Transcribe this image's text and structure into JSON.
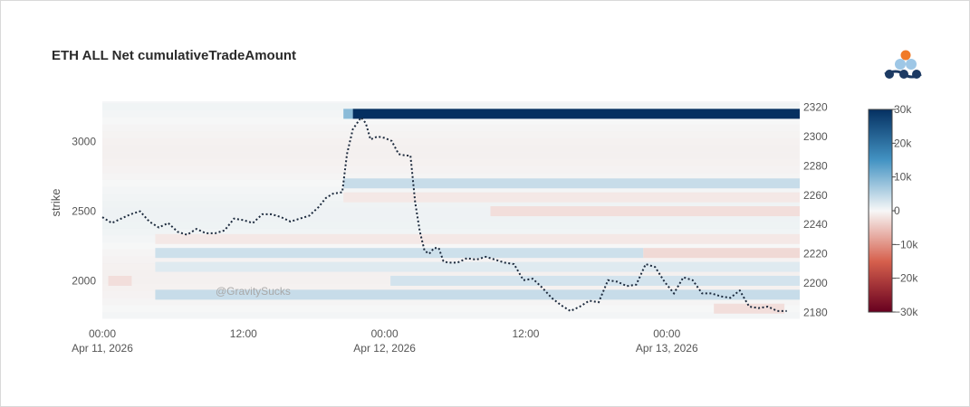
{
  "chart": {
    "title": "ETH ALL Net cumulativeTradeAmount",
    "watermark": "@GravitySucks",
    "logo_icon": "gravity-logo-icon"
  },
  "chart_data": {
    "type": "heatmap",
    "title": "ETH ALL Net cumulativeTradeAmount",
    "x_ticks": [
      {
        "t": 0,
        "time": "00:00",
        "date": "Apr 11, 2026"
      },
      {
        "t": 12,
        "time": "12:00",
        "date": ""
      },
      {
        "t": 24,
        "time": "00:00",
        "date": "Apr 12, 2026"
      },
      {
        "t": 36,
        "time": "12:00",
        "date": ""
      },
      {
        "t": 48,
        "time": "00:00",
        "date": "Apr 13, 2026"
      }
    ],
    "x_range": [
      0,
      59.3
    ],
    "y_left": {
      "label": "strike",
      "ticks": [
        2000,
        2500,
        3000
      ],
      "range": [
        1730,
        3290
      ]
    },
    "y_right": {
      "ticks": [
        2180,
        2200,
        2220,
        2240,
        2260,
        2280,
        2300,
        2320
      ],
      "range": [
        2176,
        2324
      ]
    },
    "colorbar": {
      "ticks": [
        30000,
        20000,
        10000,
        0,
        -10000,
        -20000,
        -30000
      ],
      "tick_labels": [
        "30k",
        "20k",
        "10k",
        "0",
        "−10k",
        "−20k",
        "−30k"
      ],
      "range": [
        -30000,
        30000
      ]
    },
    "bands": [
      {
        "strike": 3200,
        "start": 21.3,
        "end": 59.3,
        "value": 30000
      },
      {
        "strike": 3200,
        "start": 20.5,
        "end": 21.3,
        "value": 9000
      },
      {
        "strike": 2700,
        "start": 20.5,
        "end": 59.3,
        "value": 4000
      },
      {
        "strike": 2200,
        "start": 4.5,
        "end": 46,
        "value": 3500
      },
      {
        "strike": 2200,
        "start": 46,
        "end": 59.3,
        "value": -3000
      },
      {
        "strike": 2000,
        "start": 24.5,
        "end": 59.3,
        "value": 3000
      },
      {
        "strike": 1900,
        "start": 4.5,
        "end": 59.3,
        "value": 4000
      },
      {
        "strike": 2500,
        "start": 33,
        "end": 59.3,
        "value": -2500
      },
      {
        "strike": 2600,
        "start": 20.5,
        "end": 59.3,
        "value": -1500
      },
      {
        "strike": 2300,
        "start": 4.5,
        "end": 59.3,
        "value": -1500
      },
      {
        "strike": 2100,
        "start": 4.5,
        "end": 59.3,
        "value": 2000
      },
      {
        "strike": 1800,
        "start": 52,
        "end": 58,
        "value": -2500
      },
      {
        "strike": 2000,
        "start": 0.5,
        "end": 2.5,
        "value": -2500
      }
    ],
    "series": [
      {
        "axis": "right",
        "style": "dotted",
        "points": [
          [
            0,
            2245
          ],
          [
            0.8,
            2241
          ],
          [
            1.6,
            2244
          ],
          [
            2.4,
            2247
          ],
          [
            3.2,
            2249
          ],
          [
            4.0,
            2242
          ],
          [
            4.8,
            2238
          ],
          [
            5.6,
            2241
          ],
          [
            6.4,
            2235
          ],
          [
            7.2,
            2233
          ],
          [
            8.0,
            2237
          ],
          [
            8.8,
            2234
          ],
          [
            9.6,
            2234
          ],
          [
            10.4,
            2236
          ],
          [
            11.2,
            2244
          ],
          [
            12.0,
            2243
          ],
          [
            12.8,
            2241
          ],
          [
            13.6,
            2247
          ],
          [
            14.4,
            2247
          ],
          [
            15.2,
            2245
          ],
          [
            16.0,
            2242
          ],
          [
            16.8,
            2244
          ],
          [
            17.6,
            2246
          ],
          [
            18.4,
            2252
          ],
          [
            19.0,
            2258
          ],
          [
            19.6,
            2261
          ],
          [
            20.4,
            2262
          ],
          [
            20.8,
            2288
          ],
          [
            21.3,
            2305
          ],
          [
            22.0,
            2313
          ],
          [
            22.4,
            2309
          ],
          [
            22.8,
            2298
          ],
          [
            23.4,
            2300
          ],
          [
            24.0,
            2299
          ],
          [
            24.6,
            2297
          ],
          [
            25.2,
            2288
          ],
          [
            25.8,
            2287
          ],
          [
            26.2,
            2287
          ],
          [
            26.6,
            2255
          ],
          [
            27.0,
            2235
          ],
          [
            27.4,
            2222
          ],
          [
            27.8,
            2220
          ],
          [
            28.2,
            2224
          ],
          [
            28.6,
            2224
          ],
          [
            29.0,
            2215
          ],
          [
            29.4,
            2214
          ],
          [
            30.2,
            2214
          ],
          [
            31.0,
            2217
          ],
          [
            31.8,
            2216
          ],
          [
            32.6,
            2218
          ],
          [
            33.4,
            2216
          ],
          [
            34.2,
            2214
          ],
          [
            35.0,
            2213
          ],
          [
            35.8,
            2202
          ],
          [
            36.6,
            2203
          ],
          [
            37.4,
            2197
          ],
          [
            38.2,
            2190
          ],
          [
            39.0,
            2185
          ],
          [
            39.8,
            2181
          ],
          [
            40.6,
            2184
          ],
          [
            41.4,
            2188
          ],
          [
            42.2,
            2187
          ],
          [
            43.0,
            2202
          ],
          [
            43.8,
            2201
          ],
          [
            44.6,
            2198
          ],
          [
            45.4,
            2199
          ],
          [
            46.2,
            2213
          ],
          [
            47.0,
            2211
          ],
          [
            47.8,
            2201
          ],
          [
            48.6,
            2193
          ],
          [
            49.4,
            2204
          ],
          [
            50.2,
            2202
          ],
          [
            51.0,
            2193
          ],
          [
            51.8,
            2193
          ],
          [
            52.6,
            2191
          ],
          [
            53.4,
            2190
          ],
          [
            54.2,
            2195
          ],
          [
            55.0,
            2184
          ],
          [
            55.8,
            2183
          ],
          [
            56.6,
            2184
          ],
          [
            57.4,
            2181
          ],
          [
            58.2,
            2181
          ]
        ]
      }
    ]
  }
}
